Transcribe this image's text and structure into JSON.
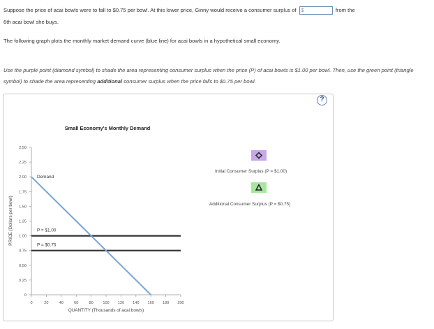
{
  "question": {
    "text_before": "Suppose the price of acai bowls were to fall to $0.75 per bowl. At this lower price, Ginny would receive a consumer surplus of",
    "currency": "$",
    "answer_value": "",
    "text_after_1": "from the",
    "text_after_2": "6th acai bowl she buys."
  },
  "intro": "The following graph plots the monthly market demand curve (blue line) for acai bowls in a hypothetical small economy.",
  "instruction": {
    "part1": "Use the purple point (diamond symbol) to shade the area representing consumer surplus when the price (P) of acai bowls is $1.00 per bowl. Then, use the green point (triangle symbol) to shade the area representing",
    "bold": "additional",
    "part2": "consumer surplus when the price falls to $0.75 per bowl."
  },
  "help_label": "?",
  "legend": {
    "initial_label": "Initial Consumer Surplus (P = $1.00)",
    "initial_icon": "diamond-icon",
    "initial_color": "#c8a8e8",
    "additional_label": "Additional Consumer Surplus (P = $0.75)",
    "additional_icon": "triangle-icon",
    "additional_color": "#a8e6a0"
  },
  "chart_data": {
    "type": "line",
    "title": "Small Economy's Monthly Demand",
    "xlabel": "QUANTITY (Thousands of acai bowls)",
    "ylabel": "PRICE (Dollars per bowl)",
    "xlim": [
      0,
      200
    ],
    "ylim": [
      0,
      2.5
    ],
    "x_ticks": [
      0,
      20,
      40,
      60,
      80,
      100,
      120,
      140,
      160,
      180,
      200
    ],
    "y_ticks": [
      0,
      0.25,
      0.5,
      0.75,
      1.0,
      1.25,
      1.5,
      1.75,
      2.0,
      2.25,
      2.5
    ],
    "y_tick_labels": [
      "0",
      "0.25",
      "0.50",
      "0.75",
      "1.00",
      "1.25",
      "1.50",
      "1.75",
      "2.00",
      "2.25",
      "2.50"
    ],
    "demand": {
      "name": "Demand",
      "color": "#7aa6d2",
      "points": [
        [
          0,
          2.0
        ],
        [
          160,
          0
        ]
      ]
    },
    "price_lines": [
      {
        "label": "P = $1.00",
        "y": 1.0
      },
      {
        "label": "P = $0.75",
        "y": 0.75
      }
    ]
  }
}
